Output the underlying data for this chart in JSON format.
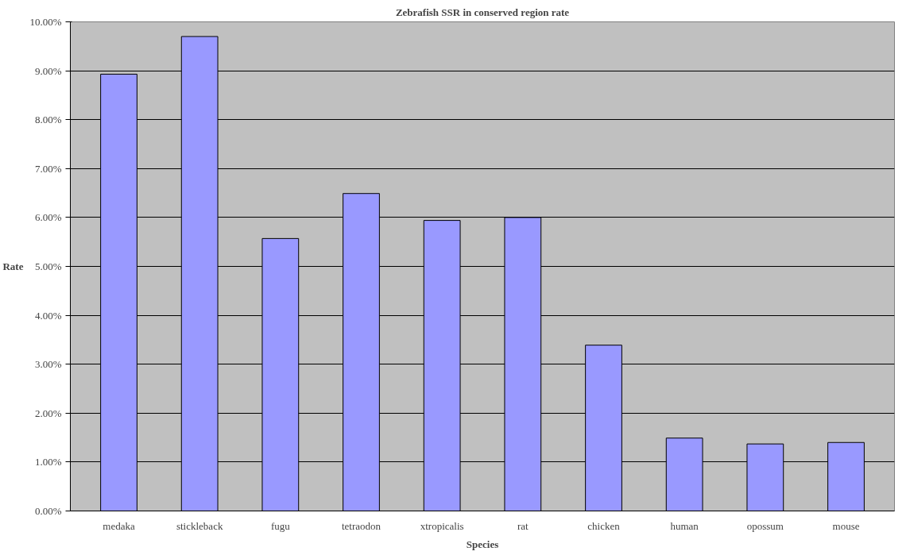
{
  "chart_data": {
    "type": "bar",
    "title": "Zebrafish SSR in conserved region rate",
    "xlabel": "Species",
    "ylabel": "Rate",
    "categories": [
      "medaka",
      "stickleback",
      "fugu",
      "tetraodon",
      "xtropicalis",
      "rat",
      "chicken",
      "human",
      "opossum",
      "mouse"
    ],
    "values": [
      8.93,
      9.7,
      5.57,
      6.49,
      5.94,
      6.0,
      3.39,
      1.49,
      1.37,
      1.4
    ],
    "color": "#9999ff",
    "ylim": [
      0,
      10
    ],
    "yticks": [
      {
        "value": 0,
        "label": "0.00%"
      },
      {
        "value": 1,
        "label": "1.00%"
      },
      {
        "value": 2,
        "label": "2.00%"
      },
      {
        "value": 3,
        "label": "3.00%"
      },
      {
        "value": 4,
        "label": "4.00%"
      },
      {
        "value": 5,
        "label": "5.00%"
      },
      {
        "value": 6,
        "label": "6.00%"
      },
      {
        "value": 7,
        "label": "7.00%"
      },
      {
        "value": 8,
        "label": "8.00%"
      },
      {
        "value": 9,
        "label": "9.00%"
      },
      {
        "value": 10,
        "label": "10.00%"
      }
    ],
    "grid": "y"
  }
}
